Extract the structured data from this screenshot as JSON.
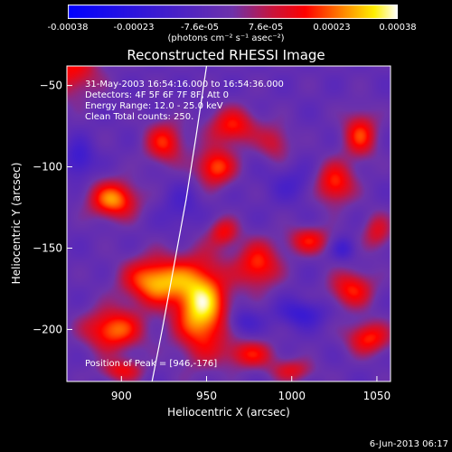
{
  "chart_data": {
    "type": "heatmap",
    "title": "Reconstructed RHESSI Image",
    "xlabel": "Heliocentric X (arcsec)",
    "ylabel": "Heliocentric Y (arcsec)",
    "xlim": [
      868,
      1058
    ],
    "ylim": [
      -232,
      -38
    ],
    "x_ticks": [
      900,
      950,
      1000,
      1050
    ],
    "y_ticks": [
      -50,
      -100,
      -150,
      -200
    ],
    "colorbar": {
      "ticks": [
        "-0.00038",
        "-0.00023",
        "-7.6e-05",
        "7.6e-05",
        "0.00023",
        "0.00038"
      ],
      "unit": "(photons cm⁻² s⁻¹ asec⁻²)",
      "range": [
        -0.00038,
        0.00038
      ]
    },
    "annotations": [
      "31-May-2003 16:54:16.000 to 16:54:36.000",
      "Detectors: 4F 5F 6F 7F 8F, Att 0",
      "Energy Range: 12.0 - 25.0 keV",
      "Clean    Total counts: 250."
    ],
    "peak_label": "Position of Peak = [946,-176]",
    "peak": [
      946,
      -176
    ],
    "limb_curve": [
      [
        918,
        -232
      ],
      [
        924,
        -200
      ],
      [
        931,
        -160
      ],
      [
        938,
        -120
      ],
      [
        944,
        -80
      ],
      [
        950,
        -38
      ]
    ],
    "blobs": [
      {
        "x": 947,
        "y": -186,
        "sx": 11,
        "sy": 20,
        "v": 0.00038
      },
      {
        "x": 920,
        "y": -170,
        "sx": 13,
        "sy": 10,
        "v": 0.00033
      },
      {
        "x": 895,
        "y": -120,
        "sx": 10,
        "sy": 8,
        "v": 0.0003
      },
      {
        "x": 895,
        "y": -200,
        "sx": 12,
        "sy": 9,
        "v": 0.00028
      },
      {
        "x": 955,
        "y": -100,
        "sx": 8,
        "sy": 8,
        "v": 0.00026
      },
      {
        "x": 965,
        "y": -75,
        "sx": 10,
        "sy": 8,
        "v": 0.00022
      },
      {
        "x": 925,
        "y": -85,
        "sx": 8,
        "sy": 9,
        "v": 0.00022
      },
      {
        "x": 1025,
        "y": -110,
        "sx": 8,
        "sy": 9,
        "v": 0.00024
      },
      {
        "x": 1040,
        "y": -80,
        "sx": 7,
        "sy": 10,
        "v": 0.00023
      },
      {
        "x": 1010,
        "y": -145,
        "sx": 9,
        "sy": 6,
        "v": 0.0002
      },
      {
        "x": 1035,
        "y": -175,
        "sx": 9,
        "sy": 8,
        "v": 0.00022
      },
      {
        "x": 1045,
        "y": -205,
        "sx": 9,
        "sy": 7,
        "v": 0.00023
      },
      {
        "x": 980,
        "y": -160,
        "sx": 9,
        "sy": 10,
        "v": 0.00024
      },
      {
        "x": 960,
        "y": -140,
        "sx": 6,
        "sy": 6,
        "v": 0.00018
      },
      {
        "x": 975,
        "y": -215,
        "sx": 10,
        "sy": 6,
        "v": 0.0002
      },
      {
        "x": 1000,
        "y": -225,
        "sx": 9,
        "sy": 5,
        "v": 0.00016
      },
      {
        "x": 900,
        "y": -225,
        "sx": 9,
        "sy": 5,
        "v": 0.00018
      },
      {
        "x": 990,
        "y": -85,
        "sx": 7,
        "sy": 8,
        "v": 0.00014
      },
      {
        "x": 1050,
        "y": -140,
        "sx": 6,
        "sy": 8,
        "v": 0.00016
      },
      {
        "x": 1005,
        "y": -190,
        "sx": 10,
        "sy": 6,
        "v": -0.00014
      },
      {
        "x": 970,
        "y": -195,
        "sx": 7,
        "sy": 6,
        "v": -0.00012
      },
      {
        "x": 1030,
        "y": -150,
        "sx": 5,
        "sy": 5,
        "v": -0.00012
      },
      {
        "x": 875,
        "y": -95,
        "sx": 6,
        "sy": 8,
        "v": -0.00014
      },
      {
        "x": 935,
        "y": -125,
        "sx": 8,
        "sy": 10,
        "v": -8e-05
      },
      {
        "x": 1000,
        "y": -110,
        "sx": 10,
        "sy": 8,
        "v": -8e-05
      },
      {
        "x": 870,
        "y": -40,
        "sx": 12,
        "sy": 12,
        "v": 0.0002
      }
    ]
  },
  "footer": {
    "timestamp": "6-Jun-2013 06:17"
  }
}
